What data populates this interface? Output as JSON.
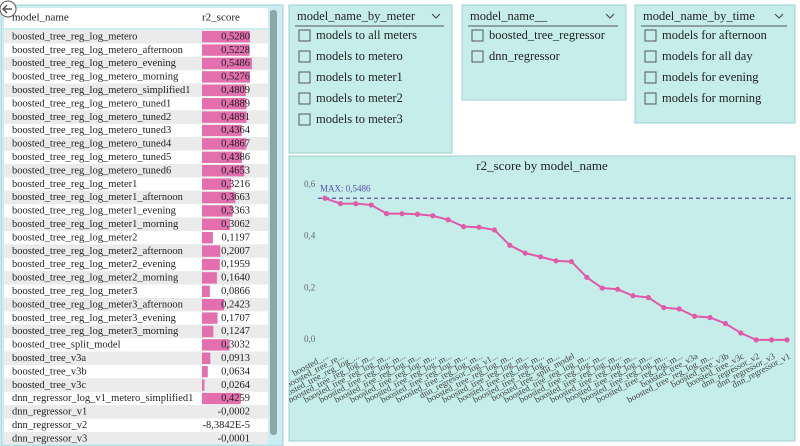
{
  "table": {
    "headers": [
      "model_name",
      "r2_score"
    ],
    "rows": [
      {
        "model_name": "boosted_tree_reg_log_metero",
        "r2_score": 0.528,
        "r2_label": "0,5280"
      },
      {
        "model_name": "boosted_tree_reg_log_metero_afternoon",
        "r2_score": 0.5228,
        "r2_label": "0,5228"
      },
      {
        "model_name": "boosted_tree_reg_log_metero_evening",
        "r2_score": 0.5486,
        "r2_label": "0,5486"
      },
      {
        "model_name": "boosted_tree_reg_log_metero_morning",
        "r2_score": 0.5276,
        "r2_label": "0,5276"
      },
      {
        "model_name": "boosted_tree_reg_log_metero_simplified1",
        "r2_score": 0.4809,
        "r2_label": "0,4809"
      },
      {
        "model_name": "boosted_tree_reg_log_metero_tuned1",
        "r2_score": 0.4889,
        "r2_label": "0,4889"
      },
      {
        "model_name": "boosted_tree_reg_log_metero_tuned2",
        "r2_score": 0.4891,
        "r2_label": "0,4891"
      },
      {
        "model_name": "boosted_tree_reg_log_metero_tuned3",
        "r2_score": 0.4364,
        "r2_label": "0,4364"
      },
      {
        "model_name": "boosted_tree_reg_log_metero_tuned4",
        "r2_score": 0.4867,
        "r2_label": "0,4867"
      },
      {
        "model_name": "boosted_tree_reg_log_metero_tuned5",
        "r2_score": 0.4386,
        "r2_label": "0,4386"
      },
      {
        "model_name": "boosted_tree_reg_log_metero_tuned6",
        "r2_score": 0.4653,
        "r2_label": "0,4653"
      },
      {
        "model_name": "boosted_tree_reg_log_meter1",
        "r2_score": 0.3216,
        "r2_label": "0,3216"
      },
      {
        "model_name": "boosted_tree_reg_log_meter1_afternoon",
        "r2_score": 0.3663,
        "r2_label": "0,3663"
      },
      {
        "model_name": "boosted_tree_reg_log_meter1_evening",
        "r2_score": 0.3363,
        "r2_label": "0,3363"
      },
      {
        "model_name": "boosted_tree_reg_log_meter1_morning",
        "r2_score": 0.3062,
        "r2_label": "0,3062"
      },
      {
        "model_name": "boosted_tree_reg_log_meter2",
        "r2_score": 0.1197,
        "r2_label": "0,1197"
      },
      {
        "model_name": "boosted_tree_reg_log_meter2_afternoon",
        "r2_score": 0.2007,
        "r2_label": "0,2007"
      },
      {
        "model_name": "boosted_tree_reg_log_meter2_evening",
        "r2_score": 0.1959,
        "r2_label": "0,1959"
      },
      {
        "model_name": "boosted_tree_reg_log_meter2_morning",
        "r2_score": 0.164,
        "r2_label": "0,1640"
      },
      {
        "model_name": "boosted_tree_reg_log_meter3",
        "r2_score": 0.0866,
        "r2_label": "0,0866"
      },
      {
        "model_name": "boosted_tree_reg_log_meter3_afternoon",
        "r2_score": 0.2423,
        "r2_label": "0,2423"
      },
      {
        "model_name": "boosted_tree_reg_log_meter3_evening",
        "r2_score": 0.1707,
        "r2_label": "0,1707"
      },
      {
        "model_name": "boosted_tree_reg_log_meter3_morning",
        "r2_score": 0.1247,
        "r2_label": "0,1247"
      },
      {
        "model_name": "boosted_tree_split_model",
        "r2_score": 0.3032,
        "r2_label": "0,3032"
      },
      {
        "model_name": "boosted_tree_v3a",
        "r2_score": 0.0913,
        "r2_label": "0,0913"
      },
      {
        "model_name": "boosted_tree_v3b",
        "r2_score": 0.0634,
        "r2_label": "0,0634"
      },
      {
        "model_name": "boosted_tree_v3c",
        "r2_score": 0.0264,
        "r2_label": "0,0264"
      },
      {
        "model_name": "dnn_regressor_log_v1_metero_simplified1",
        "r2_score": 0.4259,
        "r2_label": "0,4259"
      },
      {
        "model_name": "dnn_regressor_v1",
        "r2_score": -0.0002,
        "r2_label": "-0,0002"
      },
      {
        "model_name": "dnn_regressor_v2",
        "r2_score": -8.3842e-05,
        "r2_label": "-8,3842E-5"
      },
      {
        "model_name": "dnn_regressor_v3",
        "r2_score": -0.0001,
        "r2_label": "-0,0001"
      }
    ]
  },
  "slicers": [
    {
      "title": "model_name_by_meter",
      "options": [
        "models to all meters",
        "models to metero",
        "models to meter1",
        "models to meter2",
        "models to meter3"
      ]
    },
    {
      "title": "model_name__",
      "options": [
        "boosted_tree_regressor",
        "dnn_regressor"
      ]
    },
    {
      "title": "model_name_by_time",
      "options": [
        "models for afternoon",
        "models for all day",
        "models for evening",
        "models for morning"
      ]
    }
  ],
  "chart": {
    "type": "line",
    "title": "r2_score by model_name",
    "color": "#e05aa8",
    "max_color": "#5a4fa8",
    "max_label": "MAX: 0,5486",
    "categories": [
      "boosted_...",
      "boosted_tree_re...",
      "boosted_tree_reg_log_...",
      "boosted_tree_reg_log_m...",
      "boosted_tree_reg_log_m...",
      "boosted_tree_reg_log_m...",
      "boosted_tree_reg_log_m...",
      "boosted_tree_reg_log_m...",
      "boosted_tree_reg_log_m...",
      "boosted_tree_reg_log_m...",
      "boosted_tree_reg_log_m...",
      "dnn_regressor_log_v1...",
      "boosted_tree_reg_log_m...",
      "boosted_tree_reg_log_m...",
      "boosted_tree_reg_log_m...",
      "boosted_tree_reg_log_m...",
      "boosted_tree_split_model",
      "boosted_tree_reg_log_m...",
      "boosted_tree_reg_log_m...",
      "boosted_tree_reg_log_m...",
      "boosted_tree_reg_log_m...",
      "boosted_tree_reg_log_m...",
      "boosted_tree_reg_log_m...",
      "boosted_tree_reg_log_m...",
      "boosted_tree_v3a",
      "boosted_tree_reg_log_m...",
      "boosted_tree_v3b",
      "boosted_tree_v3c",
      "dnn_regressor_v2",
      "dnn_regressor_v3",
      "dnn_regressor_v1"
    ],
    "values": [
      0.5486,
      0.528,
      0.5276,
      0.5228,
      0.4891,
      0.4889,
      0.4867,
      0.4809,
      0.4653,
      0.4386,
      0.4364,
      0.4259,
      0.3663,
      0.3363,
      0.3216,
      0.3062,
      0.3032,
      0.2423,
      0.2007,
      0.1959,
      0.1707,
      0.164,
      0.1247,
      0.1197,
      0.0913,
      0.0866,
      0.0634,
      0.0264,
      -8.3842e-05,
      -0.0001,
      -0.0002
    ],
    "ylim": [
      -0.02,
      0.6
    ],
    "yticks": [
      {
        "value": 0,
        "label": "0,0"
      },
      {
        "value": 0.2,
        "label": "0,2"
      },
      {
        "value": 0.4,
        "label": "0,4"
      },
      {
        "value": 0.6,
        "label": "0,6"
      }
    ]
  }
}
